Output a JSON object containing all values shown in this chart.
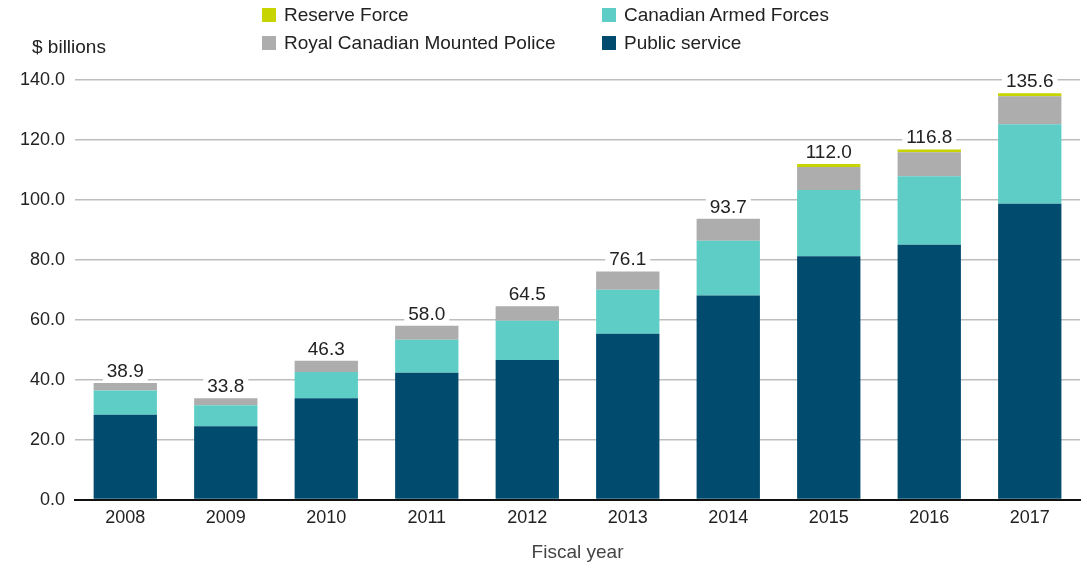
{
  "chart_data": {
    "type": "bar",
    "stacked": true,
    "xlabel": "Fiscal year",
    "ylabel": "$ billions",
    "categories": [
      "2008",
      "2009",
      "2010",
      "2011",
      "2012",
      "2013",
      "2014",
      "2015",
      "2016",
      "2017"
    ],
    "series": [
      {
        "name": "Public service",
        "color": "#004b6e",
        "values": [
          28.3,
          24.5,
          33.8,
          42.3,
          46.6,
          55.3,
          68.1,
          81.2,
          85.0,
          98.7
        ]
      },
      {
        "name": "Canadian Armed Forces",
        "color": "#5ecdc6",
        "values": [
          8.1,
          7.0,
          8.8,
          11.0,
          13.1,
          14.7,
          18.3,
          22.1,
          22.9,
          26.5
        ]
      },
      {
        "name": "Royal Canadian Mounted Police",
        "color": "#adadad",
        "values": [
          2.5,
          2.3,
          3.7,
          4.7,
          4.8,
          6.1,
          7.3,
          7.7,
          8.0,
          9.4
        ]
      },
      {
        "name": "Reserve Force",
        "color": "#c8d400",
        "values": [
          0,
          0,
          0,
          0,
          0,
          0,
          0,
          1.0,
          0.9,
          1.0
        ]
      }
    ],
    "totals": [
      "38.9",
      "33.8",
      "46.3",
      "58.0",
      "64.5",
      "76.1",
      "93.7",
      "112.0",
      "116.8",
      "135.6"
    ],
    "ylim": [
      0,
      140
    ],
    "yticks": [
      {
        "value": 0,
        "label": "0.0"
      },
      {
        "value": 20,
        "label": "20.0"
      },
      {
        "value": 40,
        "label": "40.0"
      },
      {
        "value": 60,
        "label": "60.0"
      },
      {
        "value": 80,
        "label": "80.0"
      },
      {
        "value": 100,
        "label": "100.0"
      },
      {
        "value": 120,
        "label": "120.0"
      },
      {
        "value": 140,
        "label": "140.0"
      }
    ],
    "grid": "y",
    "legend": "top"
  }
}
